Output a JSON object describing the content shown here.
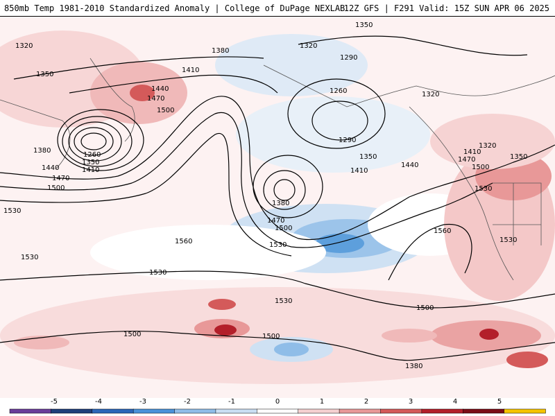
{
  "header": {
    "title_left": "850mb Temp 1981-2010 Standardized Anomaly | College of DuPage NEXLAB",
    "title_right": "12Z GFS | F291 Valid: 15Z SUN APR 06 2025"
  },
  "contour_labels": [
    "1350",
    "1320",
    "1380",
    "1290",
    "1260",
    "1320",
    "1320",
    "1350",
    "1410",
    "1440",
    "1470",
    "1500",
    "1380",
    "1260",
    "1350",
    "1410",
    "1440",
    "1470",
    "1500",
    "1290",
    "1350",
    "1410",
    "1440",
    "1320",
    "1410",
    "1470",
    "1500",
    "1350",
    "1380",
    "1470",
    "1500",
    "1530",
    "1560",
    "1530",
    "1560",
    "1530",
    "1530",
    "1530",
    "1530",
    "1530",
    "1500",
    "1500",
    "1500",
    "1380"
  ],
  "colorbar": {
    "ticks": [
      "-5",
      "-4",
      "-3",
      "-2",
      "-1",
      "0",
      "1",
      "2",
      "3",
      "4",
      "5"
    ],
    "colors": [
      "#6a3d9a",
      "#1f3f7a",
      "#2c67b8",
      "#4a92d9",
      "#8fbde8",
      "#c9def3",
      "#ffffff",
      "#f5d0d0",
      "#e89898",
      "#d45a5a",
      "#b31f2a",
      "#7a0c16",
      "#f5c400"
    ]
  }
}
